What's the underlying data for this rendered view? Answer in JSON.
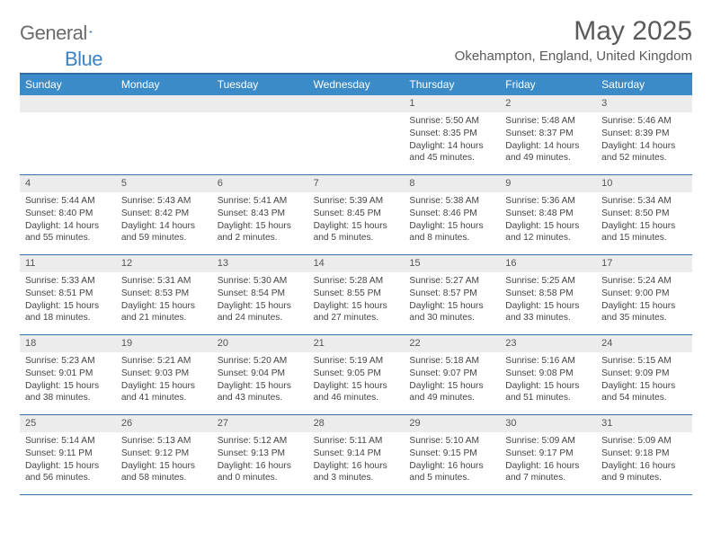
{
  "logo": {
    "text1": "General",
    "text2": "Blue"
  },
  "title": "May 2025",
  "location": "Okehampton, England, United Kingdom",
  "colors": {
    "header_bg": "#3b8bc9",
    "header_border": "#2d6ca2",
    "week_border": "#3b6fa0",
    "daynum_bg": "#ececec",
    "text": "#444444",
    "title_text": "#5a5a5a",
    "logo_gray": "#6b6b6b",
    "logo_blue": "#3b82c4"
  },
  "day_names": [
    "Sunday",
    "Monday",
    "Tuesday",
    "Wednesday",
    "Thursday",
    "Friday",
    "Saturday"
  ],
  "weeks": [
    [
      {
        "n": "",
        "sunrise": "",
        "sunset": "",
        "daylight": ""
      },
      {
        "n": "",
        "sunrise": "",
        "sunset": "",
        "daylight": ""
      },
      {
        "n": "",
        "sunrise": "",
        "sunset": "",
        "daylight": ""
      },
      {
        "n": "",
        "sunrise": "",
        "sunset": "",
        "daylight": ""
      },
      {
        "n": "1",
        "sunrise": "Sunrise: 5:50 AM",
        "sunset": "Sunset: 8:35 PM",
        "daylight": "Daylight: 14 hours and 45 minutes."
      },
      {
        "n": "2",
        "sunrise": "Sunrise: 5:48 AM",
        "sunset": "Sunset: 8:37 PM",
        "daylight": "Daylight: 14 hours and 49 minutes."
      },
      {
        "n": "3",
        "sunrise": "Sunrise: 5:46 AM",
        "sunset": "Sunset: 8:39 PM",
        "daylight": "Daylight: 14 hours and 52 minutes."
      }
    ],
    [
      {
        "n": "4",
        "sunrise": "Sunrise: 5:44 AM",
        "sunset": "Sunset: 8:40 PM",
        "daylight": "Daylight: 14 hours and 55 minutes."
      },
      {
        "n": "5",
        "sunrise": "Sunrise: 5:43 AM",
        "sunset": "Sunset: 8:42 PM",
        "daylight": "Daylight: 14 hours and 59 minutes."
      },
      {
        "n": "6",
        "sunrise": "Sunrise: 5:41 AM",
        "sunset": "Sunset: 8:43 PM",
        "daylight": "Daylight: 15 hours and 2 minutes."
      },
      {
        "n": "7",
        "sunrise": "Sunrise: 5:39 AM",
        "sunset": "Sunset: 8:45 PM",
        "daylight": "Daylight: 15 hours and 5 minutes."
      },
      {
        "n": "8",
        "sunrise": "Sunrise: 5:38 AM",
        "sunset": "Sunset: 8:46 PM",
        "daylight": "Daylight: 15 hours and 8 minutes."
      },
      {
        "n": "9",
        "sunrise": "Sunrise: 5:36 AM",
        "sunset": "Sunset: 8:48 PM",
        "daylight": "Daylight: 15 hours and 12 minutes."
      },
      {
        "n": "10",
        "sunrise": "Sunrise: 5:34 AM",
        "sunset": "Sunset: 8:50 PM",
        "daylight": "Daylight: 15 hours and 15 minutes."
      }
    ],
    [
      {
        "n": "11",
        "sunrise": "Sunrise: 5:33 AM",
        "sunset": "Sunset: 8:51 PM",
        "daylight": "Daylight: 15 hours and 18 minutes."
      },
      {
        "n": "12",
        "sunrise": "Sunrise: 5:31 AM",
        "sunset": "Sunset: 8:53 PM",
        "daylight": "Daylight: 15 hours and 21 minutes."
      },
      {
        "n": "13",
        "sunrise": "Sunrise: 5:30 AM",
        "sunset": "Sunset: 8:54 PM",
        "daylight": "Daylight: 15 hours and 24 minutes."
      },
      {
        "n": "14",
        "sunrise": "Sunrise: 5:28 AM",
        "sunset": "Sunset: 8:55 PM",
        "daylight": "Daylight: 15 hours and 27 minutes."
      },
      {
        "n": "15",
        "sunrise": "Sunrise: 5:27 AM",
        "sunset": "Sunset: 8:57 PM",
        "daylight": "Daylight: 15 hours and 30 minutes."
      },
      {
        "n": "16",
        "sunrise": "Sunrise: 5:25 AM",
        "sunset": "Sunset: 8:58 PM",
        "daylight": "Daylight: 15 hours and 33 minutes."
      },
      {
        "n": "17",
        "sunrise": "Sunrise: 5:24 AM",
        "sunset": "Sunset: 9:00 PM",
        "daylight": "Daylight: 15 hours and 35 minutes."
      }
    ],
    [
      {
        "n": "18",
        "sunrise": "Sunrise: 5:23 AM",
        "sunset": "Sunset: 9:01 PM",
        "daylight": "Daylight: 15 hours and 38 minutes."
      },
      {
        "n": "19",
        "sunrise": "Sunrise: 5:21 AM",
        "sunset": "Sunset: 9:03 PM",
        "daylight": "Daylight: 15 hours and 41 minutes."
      },
      {
        "n": "20",
        "sunrise": "Sunrise: 5:20 AM",
        "sunset": "Sunset: 9:04 PM",
        "daylight": "Daylight: 15 hours and 43 minutes."
      },
      {
        "n": "21",
        "sunrise": "Sunrise: 5:19 AM",
        "sunset": "Sunset: 9:05 PM",
        "daylight": "Daylight: 15 hours and 46 minutes."
      },
      {
        "n": "22",
        "sunrise": "Sunrise: 5:18 AM",
        "sunset": "Sunset: 9:07 PM",
        "daylight": "Daylight: 15 hours and 49 minutes."
      },
      {
        "n": "23",
        "sunrise": "Sunrise: 5:16 AM",
        "sunset": "Sunset: 9:08 PM",
        "daylight": "Daylight: 15 hours and 51 minutes."
      },
      {
        "n": "24",
        "sunrise": "Sunrise: 5:15 AM",
        "sunset": "Sunset: 9:09 PM",
        "daylight": "Daylight: 15 hours and 54 minutes."
      }
    ],
    [
      {
        "n": "25",
        "sunrise": "Sunrise: 5:14 AM",
        "sunset": "Sunset: 9:11 PM",
        "daylight": "Daylight: 15 hours and 56 minutes."
      },
      {
        "n": "26",
        "sunrise": "Sunrise: 5:13 AM",
        "sunset": "Sunset: 9:12 PM",
        "daylight": "Daylight: 15 hours and 58 minutes."
      },
      {
        "n": "27",
        "sunrise": "Sunrise: 5:12 AM",
        "sunset": "Sunset: 9:13 PM",
        "daylight": "Daylight: 16 hours and 0 minutes."
      },
      {
        "n": "28",
        "sunrise": "Sunrise: 5:11 AM",
        "sunset": "Sunset: 9:14 PM",
        "daylight": "Daylight: 16 hours and 3 minutes."
      },
      {
        "n": "29",
        "sunrise": "Sunrise: 5:10 AM",
        "sunset": "Sunset: 9:15 PM",
        "daylight": "Daylight: 16 hours and 5 minutes."
      },
      {
        "n": "30",
        "sunrise": "Sunrise: 5:09 AM",
        "sunset": "Sunset: 9:17 PM",
        "daylight": "Daylight: 16 hours and 7 minutes."
      },
      {
        "n": "31",
        "sunrise": "Sunrise: 5:09 AM",
        "sunset": "Sunset: 9:18 PM",
        "daylight": "Daylight: 16 hours and 9 minutes."
      }
    ]
  ]
}
